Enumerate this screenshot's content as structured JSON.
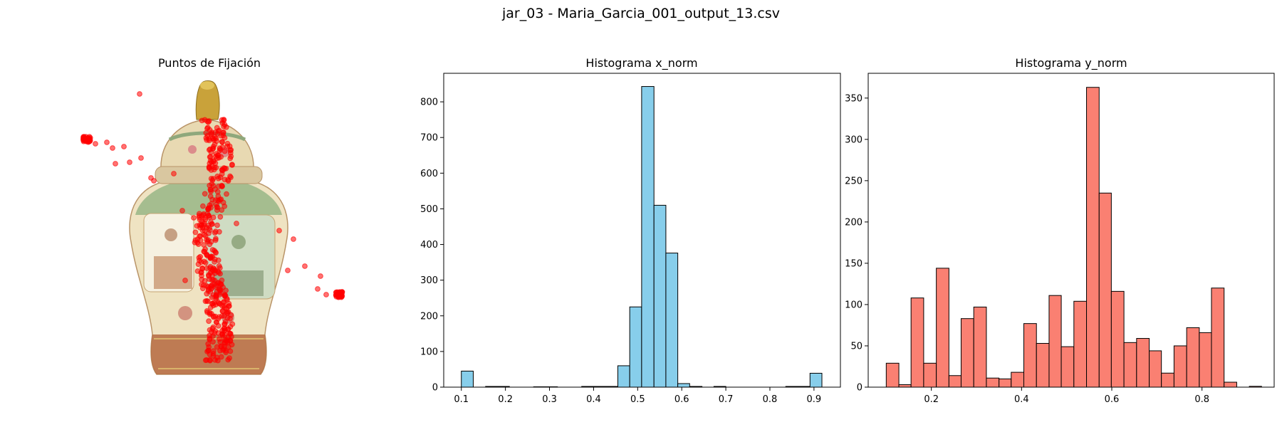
{
  "figure": {
    "title": "jar_03 - Maria_Garcia_001_output_13.csv"
  },
  "chart_data": [
    {
      "type": "scatter",
      "title": "Puntos de Fijación",
      "background_image": "jar-vase",
      "axes_visible": false,
      "marker_color": "#ff0000",
      "note": "fixation points overlaid on image of a decorated porcelain ginger jar"
    },
    {
      "type": "bar",
      "title": "Histograma x_norm",
      "xlabel": "",
      "ylabel": "",
      "color": "#87ceeb",
      "edgecolor": "#000000",
      "xlim": [
        0.06,
        0.96
      ],
      "ylim": [
        0,
        880
      ],
      "xticks": [
        0.1,
        0.2,
        0.3,
        0.4,
        0.5,
        0.6,
        0.7,
        0.8,
        0.9
      ],
      "yticks": [
        0,
        100,
        200,
        300,
        400,
        500,
        600,
        700,
        800
      ],
      "bins": [
        [
          0.1,
          0.127,
          45
        ],
        [
          0.127,
          0.155,
          0
        ],
        [
          0.155,
          0.182,
          2
        ],
        [
          0.182,
          0.209,
          2
        ],
        [
          0.209,
          0.236,
          0
        ],
        [
          0.236,
          0.264,
          0
        ],
        [
          0.264,
          0.291,
          1
        ],
        [
          0.291,
          0.318,
          1
        ],
        [
          0.318,
          0.346,
          0
        ],
        [
          0.346,
          0.373,
          0
        ],
        [
          0.373,
          0.4,
          2
        ],
        [
          0.4,
          0.427,
          2
        ],
        [
          0.427,
          0.455,
          2
        ],
        [
          0.455,
          0.482,
          60
        ],
        [
          0.482,
          0.509,
          225
        ],
        [
          0.509,
          0.537,
          843
        ],
        [
          0.537,
          0.564,
          510
        ],
        [
          0.564,
          0.591,
          376
        ],
        [
          0.591,
          0.618,
          10
        ],
        [
          0.618,
          0.646,
          2
        ],
        [
          0.646,
          0.673,
          0
        ],
        [
          0.673,
          0.7,
          2
        ],
        [
          0.7,
          0.727,
          0
        ],
        [
          0.727,
          0.755,
          0
        ],
        [
          0.755,
          0.782,
          0
        ],
        [
          0.782,
          0.809,
          0
        ],
        [
          0.809,
          0.836,
          0
        ],
        [
          0.836,
          0.864,
          2
        ],
        [
          0.864,
          0.891,
          2
        ],
        [
          0.891,
          0.918,
          39
        ]
      ]
    },
    {
      "type": "bar",
      "title": "Histograma y_norm",
      "xlabel": "",
      "ylabel": "",
      "color": "#fa8072",
      "edgecolor": "#000000",
      "xlim": [
        0.06,
        0.96
      ],
      "ylim": [
        0,
        380
      ],
      "xticks": [
        0.2,
        0.4,
        0.6,
        0.8
      ],
      "yticks": [
        0,
        50,
        100,
        150,
        200,
        250,
        300,
        350
      ],
      "bins": [
        [
          0.1,
          0.128,
          29
        ],
        [
          0.128,
          0.155,
          3
        ],
        [
          0.155,
          0.183,
          108
        ],
        [
          0.183,
          0.211,
          29
        ],
        [
          0.211,
          0.239,
          144
        ],
        [
          0.239,
          0.266,
          14
        ],
        [
          0.266,
          0.294,
          83
        ],
        [
          0.294,
          0.322,
          97
        ],
        [
          0.322,
          0.35,
          11
        ],
        [
          0.35,
          0.377,
          10
        ],
        [
          0.377,
          0.405,
          18
        ],
        [
          0.405,
          0.433,
          77
        ],
        [
          0.433,
          0.461,
          53
        ],
        [
          0.461,
          0.488,
          111
        ],
        [
          0.488,
          0.516,
          49
        ],
        [
          0.516,
          0.544,
          104
        ],
        [
          0.544,
          0.572,
          363
        ],
        [
          0.572,
          0.599,
          235
        ],
        [
          0.599,
          0.627,
          116
        ],
        [
          0.627,
          0.655,
          54
        ],
        [
          0.655,
          0.683,
          59
        ],
        [
          0.683,
          0.71,
          44
        ],
        [
          0.71,
          0.738,
          17
        ],
        [
          0.738,
          0.766,
          50
        ],
        [
          0.766,
          0.794,
          72
        ],
        [
          0.794,
          0.821,
          66
        ],
        [
          0.821,
          0.849,
          120
        ],
        [
          0.849,
          0.877,
          6
        ],
        [
          0.877,
          0.905,
          0
        ],
        [
          0.905,
          0.932,
          1
        ]
      ]
    }
  ]
}
